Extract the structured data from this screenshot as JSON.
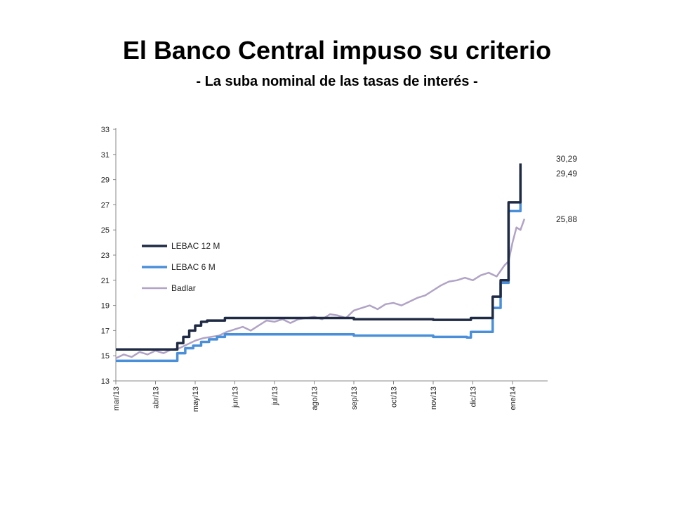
{
  "slide": {
    "title": "El Banco Central impuso su criterio",
    "subtitle": "- La suba nominal de las tasas de interés -"
  },
  "chart_data": {
    "type": "line",
    "title": "",
    "xlabel": "",
    "ylabel": "",
    "ylim": [
      13,
      33
    ],
    "yticks": [
      13,
      15,
      17,
      19,
      21,
      23,
      25,
      27,
      29,
      31,
      33
    ],
    "x_ticks": [
      "mar/13",
      "abr/13",
      "may/13",
      "jun/13",
      "jul/13",
      "ago/13",
      "sep/13",
      "oct/13",
      "nov/13",
      "dic/13",
      "ene/14"
    ],
    "x_range_months": [
      0,
      10.75
    ],
    "grid": false,
    "legend_position": "left-middle",
    "end_labels": [
      "30,29",
      "29,49",
      "25,88"
    ],
    "series": [
      {
        "name": "LEBAC 12 M",
        "color": "#1f2a44",
        "step": true,
        "points": [
          [
            0,
            15.5
          ],
          [
            1.45,
            15.5
          ],
          [
            1.55,
            16.0
          ],
          [
            1.7,
            16.5
          ],
          [
            1.85,
            17.0
          ],
          [
            2.0,
            17.4
          ],
          [
            2.15,
            17.7
          ],
          [
            2.3,
            17.8
          ],
          [
            2.65,
            17.8
          ],
          [
            2.75,
            18.0
          ],
          [
            4.0,
            18.0
          ],
          [
            6.0,
            17.9
          ],
          [
            8.0,
            17.85
          ],
          [
            8.85,
            17.85
          ],
          [
            8.95,
            18.0
          ],
          [
            9.45,
            18.0
          ],
          [
            9.5,
            19.7
          ],
          [
            9.7,
            21.0
          ],
          [
            9.85,
            21.0
          ],
          [
            9.9,
            27.2
          ],
          [
            10.15,
            27.2
          ],
          [
            10.2,
            30.29
          ]
        ]
      },
      {
        "name": "LEBAC 6 M",
        "color": "#4a8fd9",
        "step": true,
        "points": [
          [
            0,
            14.6
          ],
          [
            1.45,
            14.6
          ],
          [
            1.55,
            15.2
          ],
          [
            1.75,
            15.6
          ],
          [
            1.95,
            15.8
          ],
          [
            2.15,
            16.1
          ],
          [
            2.35,
            16.3
          ],
          [
            2.55,
            16.5
          ],
          [
            2.75,
            16.7
          ],
          [
            4.0,
            16.7
          ],
          [
            6.0,
            16.6
          ],
          [
            8.0,
            16.5
          ],
          [
            8.85,
            16.45
          ],
          [
            8.95,
            16.9
          ],
          [
            9.45,
            16.9
          ],
          [
            9.5,
            18.8
          ],
          [
            9.7,
            20.8
          ],
          [
            9.85,
            20.8
          ],
          [
            9.9,
            26.5
          ],
          [
            10.15,
            26.5
          ],
          [
            10.2,
            29.49
          ]
        ]
      },
      {
        "name": "Badlar",
        "color": "#b1a3c6",
        "step": false,
        "points": [
          [
            0,
            14.8
          ],
          [
            0.2,
            15.1
          ],
          [
            0.4,
            14.9
          ],
          [
            0.6,
            15.3
          ],
          [
            0.8,
            15.1
          ],
          [
            1.0,
            15.4
          ],
          [
            1.2,
            15.2
          ],
          [
            1.4,
            15.5
          ],
          [
            1.6,
            15.6
          ],
          [
            1.8,
            15.9
          ],
          [
            2.0,
            16.2
          ],
          [
            2.2,
            16.4
          ],
          [
            2.4,
            16.5
          ],
          [
            2.6,
            16.6
          ],
          [
            2.8,
            16.9
          ],
          [
            3.0,
            17.1
          ],
          [
            3.2,
            17.3
          ],
          [
            3.4,
            17.0
          ],
          [
            3.6,
            17.4
          ],
          [
            3.8,
            17.8
          ],
          [
            4.0,
            17.7
          ],
          [
            4.2,
            17.9
          ],
          [
            4.4,
            17.6
          ],
          [
            4.6,
            17.9
          ],
          [
            4.8,
            18.0
          ],
          [
            5.0,
            18.1
          ],
          [
            5.2,
            17.9
          ],
          [
            5.4,
            18.3
          ],
          [
            5.6,
            18.2
          ],
          [
            5.8,
            18.0
          ],
          [
            6.0,
            18.6
          ],
          [
            6.2,
            18.8
          ],
          [
            6.4,
            19.0
          ],
          [
            6.6,
            18.7
          ],
          [
            6.8,
            19.1
          ],
          [
            7.0,
            19.2
          ],
          [
            7.2,
            19.0
          ],
          [
            7.4,
            19.3
          ],
          [
            7.6,
            19.6
          ],
          [
            7.8,
            19.8
          ],
          [
            8.0,
            20.2
          ],
          [
            8.2,
            20.6
          ],
          [
            8.4,
            20.9
          ],
          [
            8.6,
            21.0
          ],
          [
            8.8,
            21.2
          ],
          [
            9.0,
            21.0
          ],
          [
            9.2,
            21.4
          ],
          [
            9.4,
            21.6
          ],
          [
            9.6,
            21.3
          ],
          [
            9.8,
            22.2
          ],
          [
            9.9,
            22.5
          ],
          [
            10.0,
            24.0
          ],
          [
            10.1,
            25.2
          ],
          [
            10.2,
            25.0
          ],
          [
            10.3,
            25.88
          ]
        ]
      }
    ]
  }
}
